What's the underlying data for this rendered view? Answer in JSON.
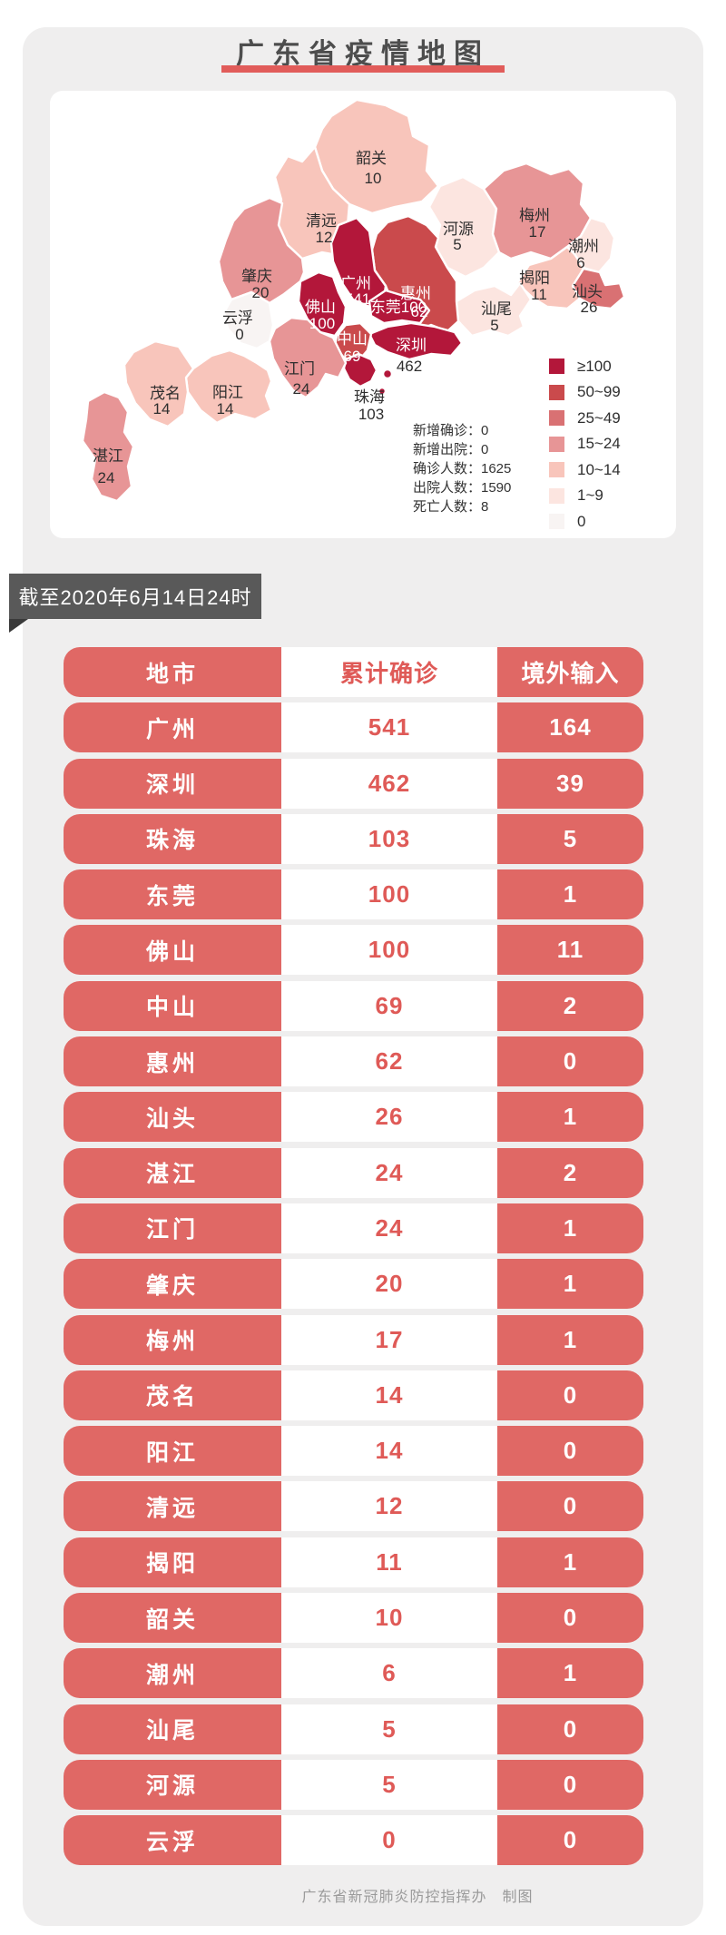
{
  "header": {
    "title": "广东省疫情地图"
  },
  "banner": {
    "text": "截至2020年6月14日24时"
  },
  "map_card": {
    "stats": [
      {
        "label": "新增确诊",
        "value": "0"
      },
      {
        "label": "新增出院",
        "value": "0"
      },
      {
        "label": "确诊人数",
        "value": "1625"
      },
      {
        "label": "出院人数",
        "value": "1590"
      },
      {
        "label": "死亡人数",
        "value": "8"
      }
    ],
    "legend": [
      {
        "label": "≥100",
        "color": "#b3173a"
      },
      {
        "label": "50~99",
        "color": "#ca4a4c"
      },
      {
        "label": "25~49",
        "color": "#d97173"
      },
      {
        "label": "15~24",
        "color": "#e79596"
      },
      {
        "label": "10~14",
        "color": "#f8c5bb"
      },
      {
        "label": "1~9",
        "color": "#fce5e0"
      },
      {
        "label": "0",
        "color": "#f8f4f3"
      }
    ],
    "regions": [
      {
        "key": "shaoguan",
        "name": "韶关",
        "value": "10",
        "level": "10~14"
      },
      {
        "key": "qingyuan",
        "name": "清远",
        "value": "12",
        "level": "10~14"
      },
      {
        "key": "heyuan",
        "name": "河源",
        "value": "5",
        "level": "1~9"
      },
      {
        "key": "meizhou",
        "name": "梅州",
        "value": "17",
        "level": "15~24"
      },
      {
        "key": "chaozhou",
        "name": "潮州",
        "value": "6",
        "level": "1~9"
      },
      {
        "key": "jieyang",
        "name": "揭阳",
        "value": "11",
        "level": "10~14"
      },
      {
        "key": "shantou",
        "name": "汕头",
        "value": "26",
        "level": "25~49"
      },
      {
        "key": "shanwei",
        "name": "汕尾",
        "value": "5",
        "level": "1~9"
      },
      {
        "key": "huizhou",
        "name": "惠州",
        "value": "62",
        "level": "50~99"
      },
      {
        "key": "zhaoqing",
        "name": "肇庆",
        "value": "20",
        "level": "15~24"
      },
      {
        "key": "yunfu",
        "name": "云浮",
        "value": "0",
        "level": "0"
      },
      {
        "key": "guangzhou",
        "name": "广州",
        "value": "541",
        "level": "≥100"
      },
      {
        "key": "foshan",
        "name": "佛山",
        "value": "100",
        "level": "≥100"
      },
      {
        "key": "dongguan",
        "name": "东莞",
        "value": "100",
        "level": "≥100"
      },
      {
        "key": "shenzhen",
        "name": "深圳",
        "value": "462",
        "level": "≥100"
      },
      {
        "key": "zhongshan",
        "name": "中山",
        "value": "69",
        "level": "50~99"
      },
      {
        "key": "zhuhai",
        "name": "珠海",
        "value": "103",
        "level": "≥100"
      },
      {
        "key": "jiangmen",
        "name": "江门",
        "value": "24",
        "level": "15~24"
      },
      {
        "key": "yangjiang",
        "name": "阳江",
        "value": "14",
        "level": "10~14"
      },
      {
        "key": "maoming",
        "name": "茂名",
        "value": "14",
        "level": "10~14"
      },
      {
        "key": "zhanjiang",
        "name": "湛江",
        "value": "24",
        "level": "15~24"
      }
    ]
  },
  "table": {
    "headers": [
      "地市",
      "累计确诊",
      "境外输入"
    ],
    "rows": [
      [
        "广州",
        "541",
        "164"
      ],
      [
        "深圳",
        "462",
        "39"
      ],
      [
        "珠海",
        "103",
        "5"
      ],
      [
        "东莞",
        "100",
        "1"
      ],
      [
        "佛山",
        "100",
        "11"
      ],
      [
        "中山",
        "69",
        "2"
      ],
      [
        "惠州",
        "62",
        "0"
      ],
      [
        "汕头",
        "26",
        "1"
      ],
      [
        "湛江",
        "24",
        "2"
      ],
      [
        "江门",
        "24",
        "1"
      ],
      [
        "肇庆",
        "20",
        "1"
      ],
      [
        "梅州",
        "17",
        "1"
      ],
      [
        "茂名",
        "14",
        "0"
      ],
      [
        "阳江",
        "14",
        "0"
      ],
      [
        "清远",
        "12",
        "0"
      ],
      [
        "揭阳",
        "11",
        "1"
      ],
      [
        "韶关",
        "10",
        "0"
      ],
      [
        "潮州",
        "6",
        "1"
      ],
      [
        "汕尾",
        "5",
        "0"
      ],
      [
        "河源",
        "5",
        "0"
      ],
      [
        "云浮",
        "0",
        "0"
      ]
    ]
  },
  "footer": {
    "text": "广东省新冠肺炎防控指挥办　制图"
  },
  "colors": {
    "panel_bg": "#efeeee",
    "title_text": "#4d4d4d",
    "title_underline": "#e15c5a",
    "banner_bg": "#595959",
    "table_red": "#e06865",
    "table_number_red": "#df5a57",
    "footer_text": "#9a9a9a"
  },
  "chart_data": {
    "type": "choropleth_map",
    "title": "广东省疫情地图",
    "region": "广东省",
    "categories": [
      "广州",
      "深圳",
      "珠海",
      "东莞",
      "佛山",
      "中山",
      "惠州",
      "汕头",
      "湛江",
      "江门",
      "肇庆",
      "梅州",
      "茂名",
      "阳江",
      "清远",
      "揭阳",
      "韶关",
      "潮州",
      "汕尾",
      "河源",
      "云浮"
    ],
    "series": [
      {
        "name": "累计确诊",
        "values": [
          541,
          462,
          103,
          100,
          100,
          69,
          62,
          26,
          24,
          24,
          20,
          17,
          14,
          14,
          12,
          11,
          10,
          6,
          5,
          5,
          0
        ]
      },
      {
        "name": "境外输入",
        "values": [
          164,
          39,
          5,
          1,
          11,
          2,
          0,
          1,
          2,
          1,
          1,
          1,
          0,
          0,
          0,
          1,
          0,
          1,
          0,
          0,
          0
        ]
      }
    ],
    "legend_bins": [
      "≥100",
      "50~99",
      "25~49",
      "15~24",
      "10~14",
      "1~9",
      "0"
    ],
    "legend_position": "right",
    "annotations": [
      "新增确诊：0",
      "新增出院：0",
      "确诊人数：1625",
      "出院人数：1590",
      "死亡人数：8"
    ]
  }
}
